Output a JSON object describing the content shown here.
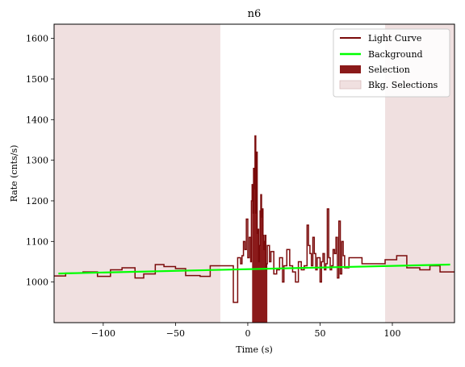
{
  "chart_data": {
    "type": "line",
    "title": "n6",
    "xlabel": "Time (s)",
    "ylabel": "Rate (cnts/s)",
    "xlim": [
      -134,
      143
    ],
    "ylim": [
      900,
      1635
    ],
    "xticks": [
      -100,
      -50,
      0,
      50,
      100
    ],
    "xtick_labels": [
      "−100",
      "−50",
      "0",
      "50",
      "100"
    ],
    "yticks": [
      1000,
      1100,
      1200,
      1300,
      1400,
      1500,
      1600
    ],
    "ytick_labels": [
      "1000",
      "1100",
      "1200",
      "1300",
      "1400",
      "1500",
      "1600"
    ],
    "grid": false,
    "legend_position": "top-right",
    "legend": [
      "Light Curve",
      "Background",
      "Selection",
      "Bkg. Selections"
    ],
    "colors": {
      "light_curve": "#7a0a0a",
      "background": "#00ff00",
      "selection": "#8b1a1a",
      "bkg_selection": "#f0e0e0"
    },
    "background_fit": {
      "x": [
        -131,
        140
      ],
      "y": [
        1021,
        1043
      ]
    },
    "bkg_selections": [
      [
        -134,
        -19
      ],
      [
        95,
        143
      ]
    ],
    "selection_interval": [
      3,
      13.5
    ],
    "light_curve": {
      "edges": [
        -134,
        -126,
        -114,
        -104,
        -95,
        -87,
        -78,
        -72,
        -64,
        -58,
        -50,
        -43,
        -33,
        -26,
        -19,
        -10,
        -7,
        -5,
        -4,
        -3,
        -2,
        -1,
        0,
        1,
        2,
        2.5,
        3,
        3.5,
        4,
        4.5,
        5,
        5.5,
        6,
        6.5,
        7,
        7.5,
        8,
        8.5,
        9,
        9.5,
        10,
        10.5,
        11,
        11.5,
        12,
        12.5,
        13,
        13.5,
        15,
        16,
        18,
        20,
        22,
        24,
        25,
        27,
        29,
        31,
        33,
        35,
        37,
        39,
        41,
        42,
        43,
        44,
        45,
        46,
        47,
        48,
        50,
        51,
        52,
        53,
        54,
        55,
        56,
        57,
        58,
        59,
        60,
        61,
        62,
        63,
        64,
        65,
        66,
        67,
        70,
        79,
        88,
        95,
        103,
        110,
        119,
        126,
        133,
        143
      ],
      "values": [
        1015,
        1022,
        1025,
        1014,
        1030,
        1035,
        1010,
        1020,
        1043,
        1038,
        1033,
        1016,
        1014,
        1040,
        1040,
        950,
        1060,
        1045,
        1065,
        1100,
        1080,
        1155,
        1060,
        1110,
        1050,
        1200,
        1240,
        1170,
        1280,
        1230,
        1360,
        1170,
        1320,
        1120,
        1130,
        1050,
        1090,
        1175,
        1215,
        1160,
        1180,
        1115,
        1080,
        1100,
        1115,
        1030,
        1045,
        1090,
        1050,
        1075,
        1020,
        1030,
        1060,
        1000,
        1040,
        1080,
        1040,
        1025,
        1000,
        1050,
        1030,
        1040,
        1140,
        1090,
        1070,
        1040,
        1110,
        1070,
        1030,
        1060,
        1000,
        1050,
        1070,
        1030,
        1045,
        1180,
        1060,
        1030,
        1040,
        1080,
        1070,
        1110,
        1010,
        1150,
        1020,
        1100,
        1065,
        1035,
        1060,
        1045,
        1045,
        1055,
        1065,
        1035,
        1030,
        1040,
        1025
      ]
    }
  }
}
